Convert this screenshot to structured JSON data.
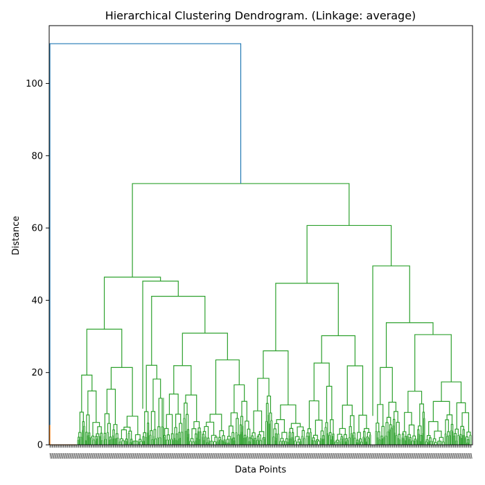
{
  "chart_data": {
    "type": "dendrogram",
    "title": "Hierarchical Clustering Dendrogram. (Linkage: average)",
    "xlabel": "Data Points",
    "ylabel": "Distance",
    "ylim": [
      0,
      116
    ],
    "yticks": [
      0,
      20,
      40,
      60,
      80,
      100
    ],
    "grid": false,
    "colors": {
      "root": "#1f77b4",
      "cluster_small": "#ff7f0e",
      "cluster_main": "#2ca02c"
    },
    "merge_heights": {
      "root": 111,
      "main_split": 72.3,
      "left_group": 46.4,
      "right_group": 60.7,
      "right_group_left": 44.7,
      "right_group_right": 49.5,
      "left_group_right": 45.3,
      "left_group_right_inner": 41.1,
      "left_group_left": 32.0
    },
    "dense_leaf_labels": true
  }
}
